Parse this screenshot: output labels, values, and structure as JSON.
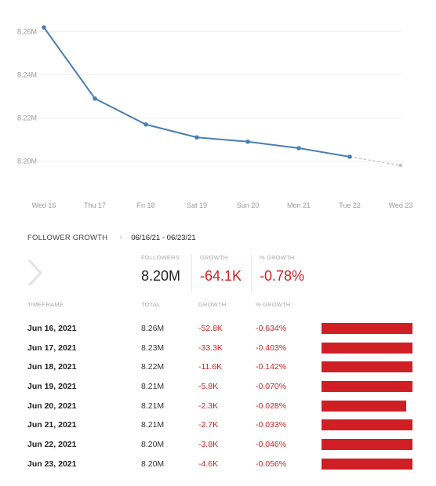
{
  "chart_data": {
    "type": "line",
    "categories": [
      "Wed 16",
      "Thu 17",
      "Fri 18",
      "Sat 19",
      "Sun 20",
      "Mon 21",
      "Tue 22",
      "Wed 23"
    ],
    "series": [
      {
        "values": [
          8.262,
          8.229,
          8.217,
          8.211,
          8.209,
          8.206,
          8.202,
          8.198
        ]
      }
    ],
    "projected_from_index": 6,
    "yticks": [
      "8.26M",
      "8.24M",
      "8.22M",
      "8.20M"
    ],
    "ytick_values": [
      8.26,
      8.24,
      8.22,
      8.2
    ],
    "ylim": [
      8.19,
      8.27
    ],
    "grid": true,
    "line_color": "#4a7fb0",
    "projection_color": "#c4c4c4"
  },
  "header": {
    "title": "FOLLOWER GROWTH",
    "date_range": "06/16/21 - 06/23/21"
  },
  "summary": {
    "followers_label": "FOLLOWERS",
    "followers_value": "8.20M",
    "growth_label": "GROWTH",
    "growth_value": "-64.1K",
    "pct_label": "% GROWTH",
    "pct_value": "-0.78%"
  },
  "table": {
    "headers": {
      "timeframe": "TIMEFRAME",
      "total": "TOTAL",
      "growth": "GROWTH",
      "pct": "% GROWTH"
    },
    "rows": [
      {
        "timeframe": "Jun 16, 2021",
        "total": "8.26M",
        "growth": "-52.8K",
        "pct": "-0.634%",
        "bar_fraction": 1.0
      },
      {
        "timeframe": "Jun 17, 2021",
        "total": "8.23M",
        "growth": "-33.3K",
        "pct": "-0.403%",
        "bar_fraction": 1.0
      },
      {
        "timeframe": "Jun 18, 2021",
        "total": "8.22M",
        "growth": "-11.6K",
        "pct": "-0.142%",
        "bar_fraction": 1.0
      },
      {
        "timeframe": "Jun 19, 2021",
        "total": "8.21M",
        "growth": "-5.8K",
        "pct": "-0.070%",
        "bar_fraction": 1.0
      },
      {
        "timeframe": "Jun 20, 2021",
        "total": "8.21M",
        "growth": "-2.3K",
        "pct": "-0.028%",
        "bar_fraction": 0.93
      },
      {
        "timeframe": "Jun 21, 2021",
        "total": "8.21M",
        "growth": "-2.7K",
        "pct": "-0.033%",
        "bar_fraction": 1.0
      },
      {
        "timeframe": "Jun 22, 2021",
        "total": "8.20M",
        "growth": "-3.8K",
        "pct": "-0.046%",
        "bar_fraction": 1.0
      },
      {
        "timeframe": "Jun 23, 2021",
        "total": "8.20M",
        "growth": "-4.6K",
        "pct": "-0.056%",
        "bar_fraction": 1.0
      }
    ],
    "bar_color": "#d01f24"
  }
}
